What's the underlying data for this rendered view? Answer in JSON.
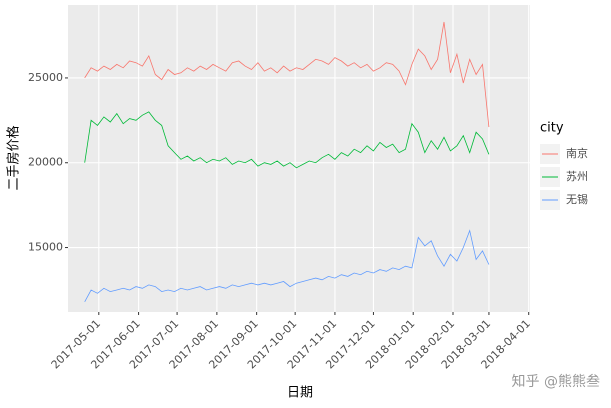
{
  "chart_data": {
    "type": "line",
    "x_label": "日期",
    "y_label": "二手房价格",
    "legend_title": "city",
    "watermark": "知乎 @熊熊叁",
    "x": [
      "2017-04-20",
      "2017-04-25",
      "2017-04-30",
      "2017-05-05",
      "2017-05-10",
      "2017-05-15",
      "2017-05-20",
      "2017-05-25",
      "2017-05-30",
      "2017-06-04",
      "2017-06-09",
      "2017-06-14",
      "2017-06-19",
      "2017-06-24",
      "2017-06-29",
      "2017-07-04",
      "2017-07-09",
      "2017-07-14",
      "2017-07-19",
      "2017-07-24",
      "2017-07-29",
      "2017-08-03",
      "2017-08-08",
      "2017-08-13",
      "2017-08-18",
      "2017-08-23",
      "2017-08-28",
      "2017-09-02",
      "2017-09-07",
      "2017-09-12",
      "2017-09-17",
      "2017-09-22",
      "2017-09-27",
      "2017-10-02",
      "2017-10-07",
      "2017-10-12",
      "2017-10-17",
      "2017-10-22",
      "2017-10-27",
      "2017-11-01",
      "2017-11-06",
      "2017-11-11",
      "2017-11-16",
      "2017-11-21",
      "2017-11-26",
      "2017-12-01",
      "2017-12-06",
      "2017-12-11",
      "2017-12-16",
      "2017-12-21",
      "2017-12-26",
      "2017-12-31",
      "2018-01-05",
      "2018-01-10",
      "2018-01-15",
      "2018-01-20",
      "2018-01-25",
      "2018-01-30",
      "2018-02-04",
      "2018-02-09",
      "2018-02-14",
      "2018-02-19",
      "2018-02-24",
      "2018-03-01"
    ],
    "series": [
      {
        "name": "南京",
        "color": "#F8766D",
        "values": [
          25000,
          25600,
          25400,
          25700,
          25500,
          25800,
          25600,
          26000,
          25900,
          25700,
          26300,
          25200,
          24900,
          25500,
          25200,
          25300,
          25600,
          25400,
          25700,
          25500,
          25800,
          25600,
          25400,
          25900,
          26000,
          25700,
          25500,
          25900,
          25400,
          25600,
          25300,
          25700,
          25400,
          25600,
          25500,
          25800,
          26100,
          26000,
          25800,
          26200,
          26000,
          25700,
          25900,
          25600,
          25800,
          25400,
          25600,
          25900,
          25800,
          25400,
          24600,
          25800,
          26700,
          26300,
          25500,
          26100,
          28300,
          25300,
          26400,
          24700,
          26100,
          25200,
          25800,
          22100
        ]
      },
      {
        "name": "苏州",
        "color": "#00BA38",
        "values": [
          20000,
          22500,
          22200,
          22700,
          22400,
          22900,
          22300,
          22600,
          22500,
          22800,
          23000,
          22500,
          22200,
          21000,
          20600,
          20200,
          20400,
          20100,
          20300,
          20000,
          20200,
          20100,
          20300,
          19900,
          20100,
          20000,
          20200,
          19800,
          20000,
          19900,
          20100,
          19800,
          20000,
          19700,
          19900,
          20100,
          20000,
          20300,
          20500,
          20200,
          20600,
          20400,
          20800,
          20600,
          21000,
          20700,
          21200,
          20900,
          21100,
          20600,
          20800,
          22300,
          21800,
          20600,
          21300,
          20800,
          21500,
          20700,
          21000,
          21600,
          20600,
          21800,
          21400,
          20500
        ]
      },
      {
        "name": "无锡",
        "color": "#619CFF",
        "values": [
          11800,
          12500,
          12300,
          12600,
          12400,
          12500,
          12600,
          12500,
          12700,
          12600,
          12800,
          12700,
          12400,
          12500,
          12400,
          12600,
          12500,
          12600,
          12700,
          12500,
          12600,
          12700,
          12600,
          12800,
          12700,
          12800,
          12900,
          12800,
          12900,
          12800,
          12900,
          13000,
          12700,
          12900,
          13000,
          13100,
          13200,
          13100,
          13300,
          13200,
          13400,
          13300,
          13500,
          13400,
          13600,
          13500,
          13700,
          13600,
          13800,
          13700,
          13900,
          13800,
          15600,
          15100,
          15400,
          14500,
          13900,
          14600,
          14200,
          15000,
          16000,
          14300,
          14800,
          14000
        ]
      }
    ],
    "xlim": [
      "2017-04-07",
      "2018-04-02"
    ],
    "xticks": [
      "2017-05-01",
      "2017-06-01",
      "2017-07-01",
      "2017-08-01",
      "2017-09-01",
      "2017-10-01",
      "2017-11-01",
      "2017-12-01",
      "2018-01-01",
      "2018-02-01",
      "2018-03-01",
      "2018-04-01"
    ],
    "ylim": [
      11200,
      29300
    ],
    "yticks": [
      15000,
      20000,
      25000
    ],
    "grid": true,
    "legend": "right"
  }
}
